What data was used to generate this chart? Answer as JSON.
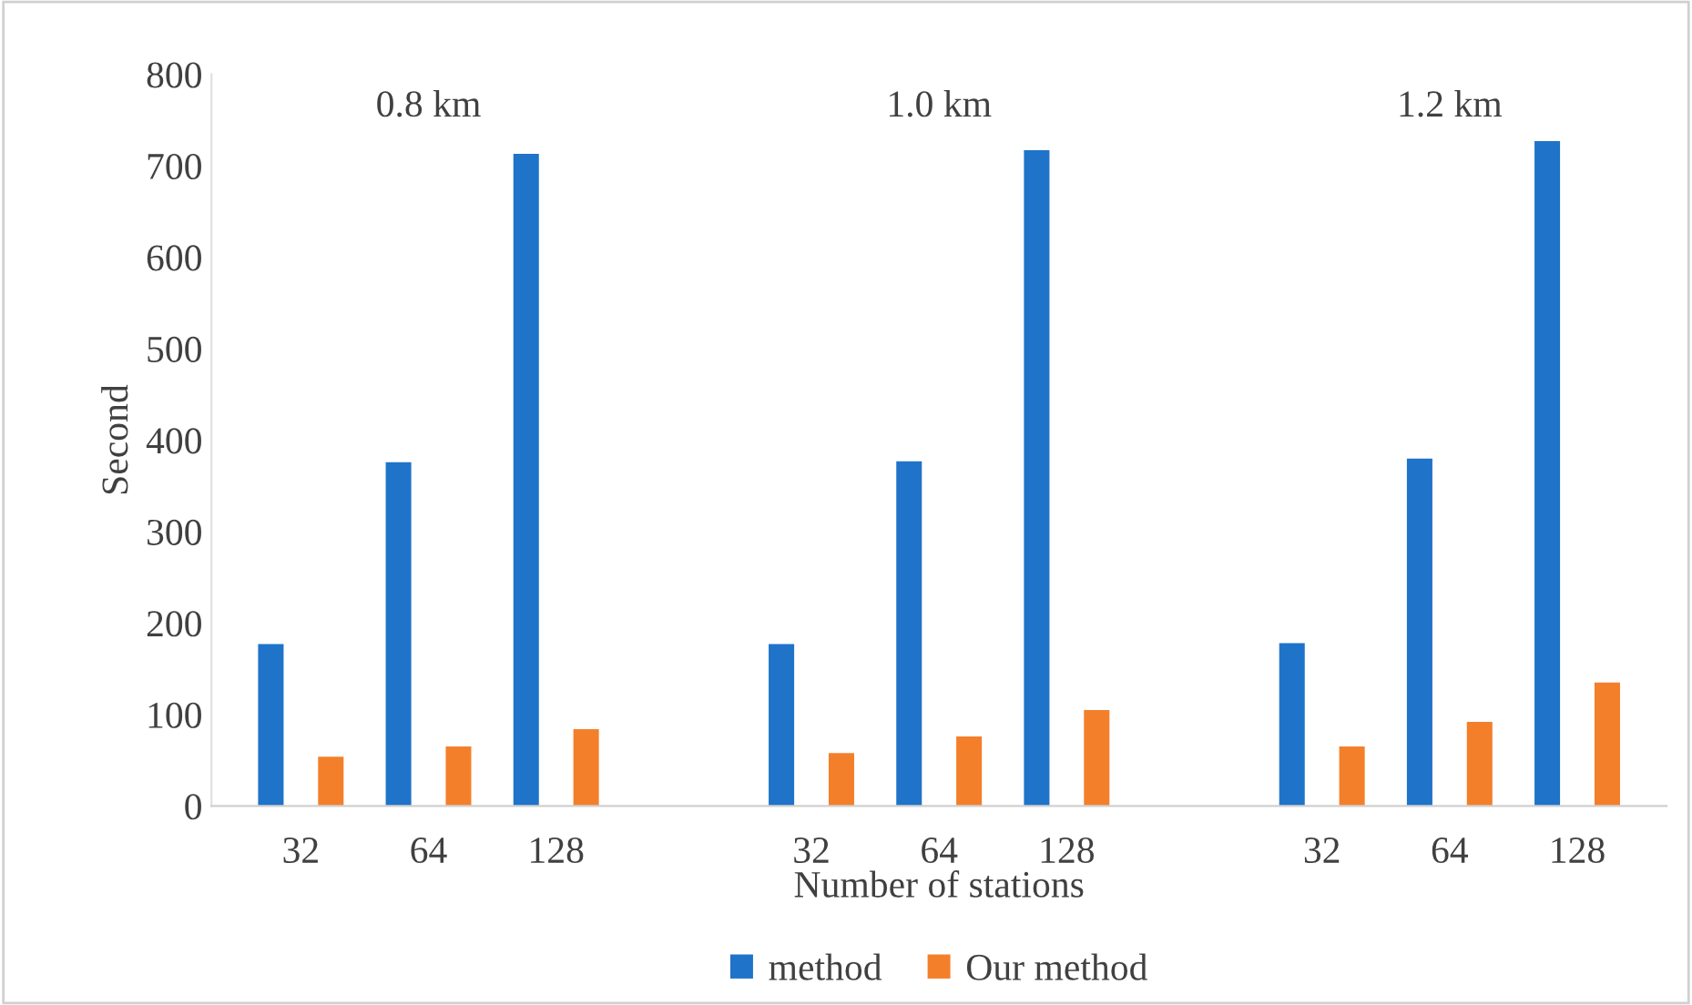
{
  "chart_data": {
    "type": "bar",
    "xlabel": "Number of stations",
    "ylabel": "Second",
    "categories": [
      "32",
      "64",
      "128",
      null,
      "32",
      "64",
      "128",
      null,
      "32",
      "64",
      "128"
    ],
    "series": [
      {
        "name": "method",
        "color": "#1f73c9",
        "values": [
          177,
          376,
          713,
          null,
          177,
          377,
          717,
          null,
          178,
          380,
          727
        ]
      },
      {
        "name": "Our method",
        "color": "#f47f2a",
        "values": [
          54,
          65,
          84,
          null,
          58,
          76,
          105,
          null,
          65,
          92,
          135
        ]
      }
    ],
    "annotations": [
      "0.8 km",
      "1.0 km",
      "1.2 km"
    ],
    "ylim": [
      0,
      800
    ],
    "yticks": [
      0,
      100,
      200,
      300,
      400,
      500,
      600,
      700,
      800
    ],
    "grid": false,
    "legend": "bottom"
  }
}
